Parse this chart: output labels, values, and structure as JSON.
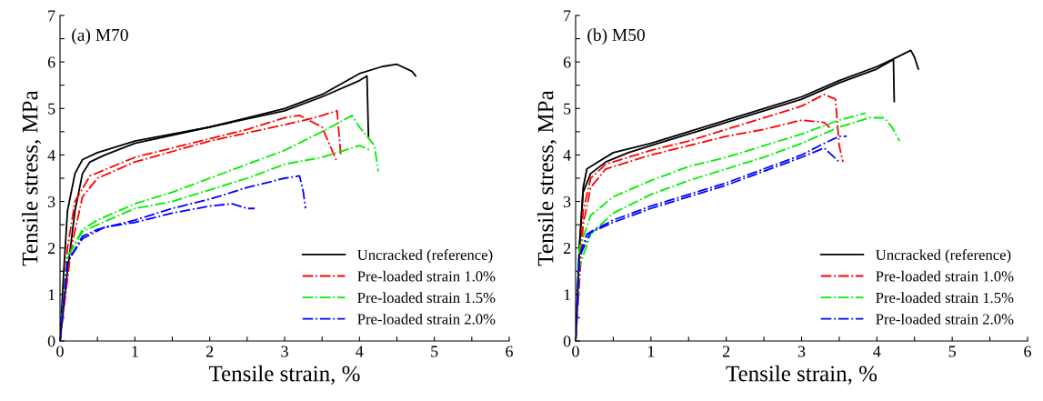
{
  "chart_data": [
    {
      "type": "line",
      "title": "(a) M70",
      "xlabel": "Tensile strain, %",
      "ylabel": "Tensile stress, MPa",
      "xlim": [
        0,
        6
      ],
      "ylim": [
        0,
        7
      ],
      "xticks": [
        0,
        {
          "value": 0.5,
          "label": null
        },
        1,
        {
          "value": 1.5,
          "label": null
        },
        2,
        {
          "value": 2.5,
          "label": null
        },
        3,
        {
          "value": 3.5,
          "label": null
        },
        4,
        {
          "value": 4.5,
          "label": null
        },
        5,
        {
          "value": 5.5,
          "label": null
        },
        6
      ],
      "yticks": [
        0,
        {
          "value": 0.5,
          "label": null
        },
        1,
        {
          "value": 1.5,
          "label": null
        },
        2,
        {
          "value": 2.5,
          "label": null
        },
        3,
        {
          "value": 3.5,
          "label": null
        },
        4,
        {
          "value": 4.5,
          "label": null
        },
        5,
        {
          "value": 5.5,
          "label": null
        },
        6,
        {
          "value": 6.5,
          "label": null
        },
        7
      ],
      "grid": false,
      "legend": "bottom right",
      "marker": "none",
      "series": [
        {
          "name": "Uncracked (reference)",
          "color": "#000000",
          "line_style": "solid",
          "x": [
            0,
            0.05,
            0.1,
            0.2,
            0.3,
            0.5,
            1,
            1.5,
            2,
            2.5,
            3,
            3.5,
            4,
            4.3,
            4.5,
            4.7,
            4.75
          ],
          "values": [
            0,
            1.5,
            2.8,
            3.6,
            3.9,
            4.05,
            4.3,
            4.45,
            4.6,
            4.8,
            5.0,
            5.3,
            5.75,
            5.9,
            5.95,
            5.8,
            5.7
          ]
        },
        {
          "color": "#000000",
          "line_style": "solid",
          "x": [
            0,
            0.1,
            0.2,
            0.3,
            0.4,
            0.6,
            1,
            2,
            3,
            3.5,
            4.0,
            4.1,
            4.12
          ],
          "values": [
            0,
            1.5,
            2.8,
            3.6,
            3.85,
            4.0,
            4.25,
            4.6,
            4.95,
            5.25,
            5.6,
            5.7,
            4.4
          ]
        },
        {
          "name": "Pre-loaded strain 1.0%",
          "color": "#ff0000",
          "line_style": "dashdot",
          "x": [
            0,
            0.1,
            0.2,
            0.4,
            1,
            1.5,
            2,
            2.5,
            3,
            3.2,
            3.5,
            3.7
          ],
          "values": [
            0,
            2.0,
            3.0,
            3.55,
            3.95,
            4.15,
            4.35,
            4.55,
            4.8,
            4.85,
            4.6,
            3.85
          ]
        },
        {
          "color": "#ff0000",
          "line_style": "dashdot",
          "x": [
            0,
            0.15,
            0.3,
            0.5,
            1,
            2,
            3,
            3.4,
            3.7,
            3.75
          ],
          "values": [
            0,
            2.0,
            3.1,
            3.5,
            3.85,
            4.3,
            4.65,
            4.8,
            4.95,
            4.0
          ]
        },
        {
          "name": "Pre-loaded strain 1.5%",
          "color": "#00ee00",
          "line_style": "dashdot",
          "x": [
            0,
            0.1,
            0.3,
            0.5,
            1,
            1.5,
            2,
            2.5,
            3,
            3.5,
            3.9,
            4.0,
            4.2,
            4.25
          ],
          "values": [
            0,
            1.8,
            2.4,
            2.6,
            2.95,
            3.2,
            3.5,
            3.8,
            4.1,
            4.5,
            4.85,
            4.6,
            4.2,
            3.65
          ]
        },
        {
          "color": "#00ee00",
          "line_style": "dashdot",
          "x": [
            0,
            0.1,
            0.3,
            0.5,
            1,
            1.5,
            2,
            2.5,
            3,
            3.5,
            4.0,
            4.15
          ],
          "values": [
            0,
            1.8,
            2.35,
            2.5,
            2.85,
            3.0,
            3.25,
            3.5,
            3.8,
            3.95,
            4.2,
            4.1
          ]
        },
        {
          "name": "Pre-loaded strain 2.0%",
          "color": "#0000ff",
          "line_style": "dashdot",
          "x": [
            0,
            0.1,
            0.3,
            0.5,
            1,
            1.5,
            2,
            2.5,
            3.0,
            3.2,
            3.25,
            3.28
          ],
          "values": [
            0,
            1.7,
            2.25,
            2.4,
            2.6,
            2.85,
            3.05,
            3.3,
            3.5,
            3.55,
            3.2,
            2.85
          ]
        },
        {
          "color": "#0000ff",
          "line_style": "dashdot",
          "x": [
            0,
            0.1,
            0.3,
            0.6,
            1,
            1.5,
            2,
            2.3,
            2.5,
            2.6
          ],
          "values": [
            0,
            1.7,
            2.2,
            2.45,
            2.55,
            2.75,
            2.9,
            2.95,
            2.85,
            2.85
          ]
        }
      ]
    },
    {
      "type": "line",
      "title": "(b) M50",
      "xlabel": "Tensile strain, %",
      "ylabel": "Tensile stress, MPa",
      "xlim": [
        0,
        6
      ],
      "ylim": [
        0,
        7
      ],
      "xticks": [
        0,
        {
          "value": 0.5,
          "label": null
        },
        1,
        {
          "value": 1.5,
          "label": null
        },
        2,
        {
          "value": 2.5,
          "label": null
        },
        3,
        {
          "value": 3.5,
          "label": null
        },
        4,
        {
          "value": 4.5,
          "label": null
        },
        5,
        {
          "value": 5.5,
          "label": null
        },
        6
      ],
      "yticks": [
        0,
        {
          "value": 0.5,
          "label": null
        },
        1,
        {
          "value": 1.5,
          "label": null
        },
        2,
        {
          "value": 2.5,
          "label": null
        },
        3,
        {
          "value": 3.5,
          "label": null
        },
        4,
        {
          "value": 4.5,
          "label": null
        },
        5,
        {
          "value": 5.5,
          "label": null
        },
        6,
        {
          "value": 6.5,
          "label": null
        },
        7
      ],
      "grid": false,
      "legend": "bottom right",
      "marker": "none",
      "series": [
        {
          "name": "Uncracked (reference)",
          "color": "#000000",
          "line_style": "solid",
          "x": [
            0,
            0.05,
            0.1,
            0.15,
            0.3,
            0.5,
            1,
            1.5,
            2,
            2.5,
            3,
            3.5,
            4,
            4.2,
            4.45,
            4.5,
            4.55
          ],
          "values": [
            0,
            2,
            3.3,
            3.7,
            3.85,
            4.05,
            4.25,
            4.5,
            4.75,
            5.0,
            5.25,
            5.6,
            5.9,
            6.05,
            6.25,
            6.1,
            5.85
          ]
        },
        {
          "color": "#000000",
          "line_style": "solid",
          "x": [
            0,
            0.05,
            0.1,
            0.2,
            0.4,
            0.7,
            1,
            1.5,
            2,
            2.5,
            3,
            3.5,
            4,
            4.22,
            4.23
          ],
          "values": [
            0,
            2,
            3.2,
            3.6,
            3.85,
            4.05,
            4.2,
            4.45,
            4.7,
            4.95,
            5.2,
            5.55,
            5.85,
            6.05,
            5.15
          ]
        },
        {
          "name": "Pre-loaded strain 1.0%",
          "color": "#ff0000",
          "line_style": "dashdot",
          "x": [
            0,
            0.05,
            0.1,
            0.2,
            0.4,
            1,
            1.5,
            2,
            2.5,
            3,
            3.3,
            3.45,
            3.5,
            3.55
          ],
          "values": [
            0,
            1.5,
            2.8,
            3.5,
            3.8,
            4.1,
            4.3,
            4.55,
            4.8,
            5.05,
            5.3,
            5.2,
            4.2,
            3.85
          ]
        },
        {
          "color": "#ff0000",
          "line_style": "dashdot",
          "x": [
            0,
            0.1,
            0.2,
            0.4,
            1,
            1.5,
            2,
            2.5,
            3,
            3.3,
            3.4
          ],
          "values": [
            0,
            2.5,
            3.3,
            3.7,
            4.0,
            4.2,
            4.4,
            4.55,
            4.75,
            4.7,
            4.55
          ]
        },
        {
          "name": "Pre-loaded strain 1.5%",
          "color": "#00ee00",
          "line_style": "dashdot",
          "x": [
            0,
            0.05,
            0.2,
            0.5,
            1,
            1.5,
            2,
            2.5,
            3,
            3.5,
            3.85
          ],
          "values": [
            0,
            2.0,
            2.7,
            3.1,
            3.45,
            3.75,
            3.95,
            4.2,
            4.45,
            4.75,
            4.9
          ]
        },
        {
          "color": "#00ee00",
          "line_style": "dashdot",
          "x": [
            0,
            0.05,
            0.2,
            0.5,
            1,
            1.5,
            2,
            2.5,
            3,
            3.5,
            3.9,
            4.1,
            4.2,
            4.3
          ],
          "values": [
            0,
            1.6,
            2.3,
            2.75,
            3.15,
            3.45,
            3.7,
            3.95,
            4.25,
            4.6,
            4.8,
            4.8,
            4.6,
            4.3
          ]
        },
        {
          "name": "Pre-loaded strain 2.0%",
          "color": "#0000ff",
          "line_style": "dashdot",
          "x": [
            0,
            0.05,
            0.15,
            0.5,
            1,
            1.5,
            2,
            2.5,
            3,
            3.3,
            3.4,
            3.5
          ],
          "values": [
            0,
            1.8,
            2.3,
            2.55,
            2.85,
            3.1,
            3.35,
            3.65,
            3.95,
            4.15,
            4.0,
            3.85
          ]
        },
        {
          "color": "#0000ff",
          "line_style": "dashdot",
          "x": [
            0,
            0.05,
            0.2,
            0.5,
            1,
            1.5,
            2,
            2.5,
            3,
            3.3,
            3.5,
            3.6
          ],
          "values": [
            0,
            1.8,
            2.35,
            2.6,
            2.9,
            3.15,
            3.4,
            3.7,
            4.0,
            4.25,
            4.4,
            4.4
          ]
        }
      ]
    }
  ]
}
